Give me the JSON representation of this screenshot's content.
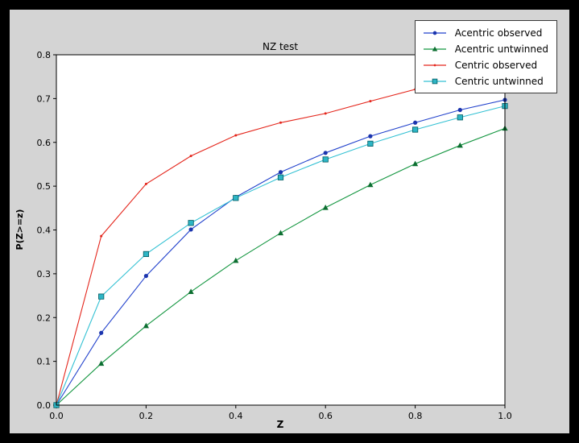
{
  "window": {
    "outer_bg": "#000000",
    "figure_bg": "#d4d4d4",
    "plot_bg": "#ffffff"
  },
  "chart_data": {
    "type": "line",
    "title": "NZ test",
    "xlabel": "Z",
    "ylabel": "P(Z>=z)",
    "xlim": [
      0.0,
      1.0
    ],
    "ylim": [
      0.0,
      0.8
    ],
    "grid": false,
    "legend_position": "upper right",
    "xticks": {
      "values": [
        0.0,
        0.2,
        0.4,
        0.6,
        0.8,
        1.0
      ],
      "labels": [
        "0.0",
        "0.2",
        "0.4",
        "0.6",
        "0.8",
        "1.0"
      ]
    },
    "yticks": {
      "values": [
        0.0,
        0.1,
        0.2,
        0.3,
        0.4,
        0.5,
        0.6,
        0.7,
        0.8
      ],
      "labels": [
        "0.0",
        "0.1",
        "0.2",
        "0.3",
        "0.4",
        "0.5",
        "0.6",
        "0.7",
        "0.8"
      ]
    },
    "x": [
      0.0,
      0.1,
      0.2,
      0.3,
      0.4,
      0.5,
      0.6,
      0.7,
      0.8,
      0.9,
      1.0
    ],
    "series": [
      {
        "name": "Acentric observed",
        "color": "#2242cc",
        "marker": "circle",
        "marker_fill": "#1b34ad",
        "values": [
          0.0,
          0.165,
          0.295,
          0.401,
          0.475,
          0.532,
          0.576,
          0.614,
          0.645,
          0.674,
          0.697
        ]
      },
      {
        "name": "Acentric untwinned",
        "color": "#149640",
        "marker": "triangle",
        "marker_fill": "#0c6e30",
        "values": [
          0.0,
          0.095,
          0.181,
          0.259,
          0.33,
          0.393,
          0.451,
          0.503,
          0.551,
          0.593,
          0.632
        ]
      },
      {
        "name": "Centric observed",
        "color": "#e4261c",
        "marker": "dot",
        "marker_fill": "#e4261c",
        "values": [
          0.0,
          0.386,
          0.505,
          0.569,
          0.616,
          0.645,
          0.666,
          0.694,
          0.721,
          0.744,
          0.757
        ]
      },
      {
        "name": "Centric untwinned",
        "color": "#33c1d3",
        "marker": "square",
        "marker_fill": "#2db5c5",
        "marker_edge": "#005a60",
        "values": [
          0.0,
          0.248,
          0.345,
          0.416,
          0.473,
          0.52,
          0.561,
          0.597,
          0.629,
          0.657,
          0.683
        ]
      }
    ]
  }
}
